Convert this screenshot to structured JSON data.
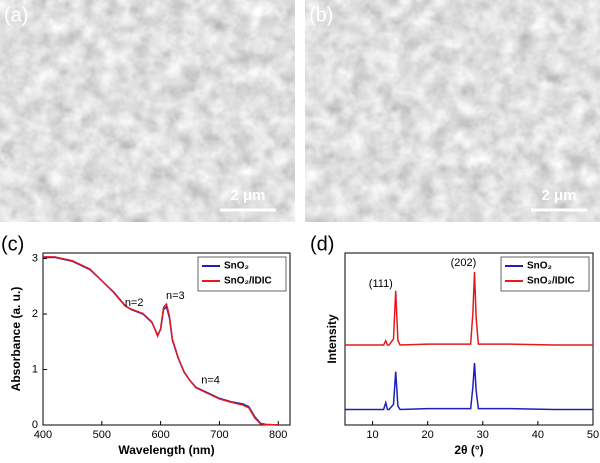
{
  "images": [
    {
      "label": "(a)",
      "scale_label": "2 μm"
    },
    {
      "label": "(b)",
      "scale_label": "2 μm"
    }
  ],
  "chart_data": [
    {
      "type": "line",
      "panel_label": "(c)",
      "x_label": "Wavelength (nm)",
      "y_label": "Absorbance (a. u.)",
      "x": [
        400,
        420,
        450,
        480,
        500,
        520,
        540,
        550,
        570,
        585,
        595,
        600,
        605,
        610,
        615,
        620,
        630,
        640,
        650,
        660,
        680,
        700,
        720,
        740,
        750,
        760,
        770,
        780,
        800
      ],
      "series": [
        {
          "name": "SnO₂",
          "color": "#1f1fbf",
          "values": [
            3.02,
            3.02,
            2.95,
            2.8,
            2.6,
            2.4,
            2.15,
            2.08,
            2.0,
            1.85,
            1.62,
            1.72,
            2.08,
            2.13,
            1.93,
            1.53,
            1.2,
            0.95,
            0.8,
            0.68,
            0.58,
            0.48,
            0.42,
            0.38,
            0.33,
            0.15,
            0.03,
            0.01,
            0.0
          ]
        },
        {
          "name": "SnO₂/IDIC",
          "color": "#e41a1c",
          "values": [
            3.03,
            3.03,
            2.96,
            2.81,
            2.6,
            2.39,
            2.14,
            2.09,
            2.01,
            1.86,
            1.6,
            1.74,
            2.12,
            2.18,
            1.96,
            1.55,
            1.21,
            0.96,
            0.8,
            0.67,
            0.57,
            0.47,
            0.41,
            0.36,
            0.31,
            0.13,
            0.02,
            0.01,
            0.0
          ]
        }
      ],
      "annotations": [
        {
          "text": "n=2",
          "x": 555,
          "y": 2.2
        },
        {
          "text": "n=3",
          "x": 625,
          "y": 2.32
        },
        {
          "text": "n=4",
          "x": 685,
          "y": 0.8
        }
      ],
      "xlim": [
        400,
        820
      ],
      "ylim": [
        0,
        3.1
      ],
      "xticks": [
        400,
        500,
        600,
        700,
        800
      ],
      "yticks": [
        0,
        1,
        2,
        3
      ]
    },
    {
      "type": "line",
      "panel_label": "(d)",
      "x_label": "2θ (°)",
      "y_label": "Intensity",
      "x": [
        5,
        12,
        12.4,
        12.7,
        13,
        13.8,
        14.2,
        14.6,
        15,
        20,
        27.8,
        28.2,
        28.5,
        28.8,
        29.2,
        35,
        43,
        50
      ],
      "series": [
        {
          "name": "SnO₂",
          "color": "#1f1fbf",
          "values": [
            0.9,
            0.9,
            1.3,
            0.9,
            0.9,
            1.2,
            3.1,
            1.1,
            0.9,
            0.95,
            0.95,
            2.2,
            3.6,
            2.0,
            0.95,
            0.95,
            0.9,
            0.9
          ]
        },
        {
          "name": "SnO₂/IDIC",
          "color": "#e41a1c",
          "values": [
            4.65,
            4.65,
            4.9,
            4.65,
            4.65,
            5.0,
            7.8,
            4.9,
            4.65,
            4.7,
            4.7,
            6.5,
            8.9,
            6.2,
            4.7,
            4.7,
            4.65,
            4.65
          ]
        }
      ],
      "annotations": [
        {
          "text": "(111)",
          "x": 11.5,
          "y": 8.2
        },
        {
          "text": "(202)",
          "x": 26.5,
          "y": 9.4
        }
      ],
      "xlim": [
        5,
        50
      ],
      "ylim": [
        0,
        10
      ],
      "xticks": [
        10,
        20,
        30,
        40,
        50
      ]
    }
  ]
}
